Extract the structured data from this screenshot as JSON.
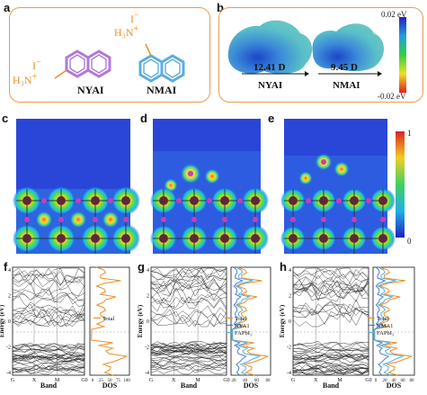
{
  "panels": {
    "a": "a",
    "b": "b",
    "c": "c",
    "d": "d",
    "e": "e",
    "f": "f",
    "g": "g",
    "h": "h"
  },
  "molecules": {
    "nyai": {
      "name": "NYAI",
      "iodide": "I",
      "minus": "−",
      "ammonium": "H₃N",
      "plus": "+"
    },
    "nmai": {
      "name": "NMAI",
      "iodide": "I",
      "minus": "−",
      "ammonium": "H₃N",
      "plus": "+"
    }
  },
  "esp": {
    "nyai_dipole": "12.41 D",
    "nyai_name": "NYAI",
    "nmai_dipole": "9.45 D",
    "nmai_name": "NMAI",
    "scale_max": "0.02 eV",
    "scale_min": "-0.02 eV"
  },
  "density_scale": {
    "max": "1",
    "min": "0"
  },
  "band_panels": [
    {
      "id": "f",
      "ylabel": "Energy (eV)",
      "xlabel": "Band",
      "dos_xlabel": "DOS",
      "kpoints": [
        "G",
        "X",
        "M",
        "G0"
      ],
      "dos_ticks": [
        "0",
        "25",
        "50",
        "75",
        "100"
      ],
      "legend": [
        "Total"
      ]
    },
    {
      "id": "g",
      "ylabel": "Energy (eV)",
      "xlabel": "Band",
      "dos_xlabel": "DOS",
      "kpoints": [
        "G",
        "X",
        "M",
        "G0"
      ],
      "dos_ticks": [
        "20",
        "40",
        "60",
        "80"
      ],
      "legend": [
        "Total",
        "NYA1",
        "FAPbI₃"
      ]
    },
    {
      "id": "h",
      "ylabel": "Energy (eV)",
      "xlabel": "Band",
      "dos_xlabel": "DOS",
      "kpoints": [
        "G",
        "X",
        "M",
        "G0"
      ],
      "dos_ticks": [
        "0",
        "20",
        "40",
        "60",
        "80"
      ],
      "legend": [
        "Total",
        "NMA1",
        "FAPbI₃"
      ]
    }
  ],
  "energy_ticks": [
    "4",
    "2",
    "0",
    "-2",
    "-4"
  ],
  "colors": {
    "total": "#e8902a",
    "organic": "#4a7fd0",
    "fapbi3": "#5ab0e0",
    "nyai_ring": "#b07ad8",
    "nmai_ring": "#5aaee0",
    "box_border": "#e0a050"
  }
}
